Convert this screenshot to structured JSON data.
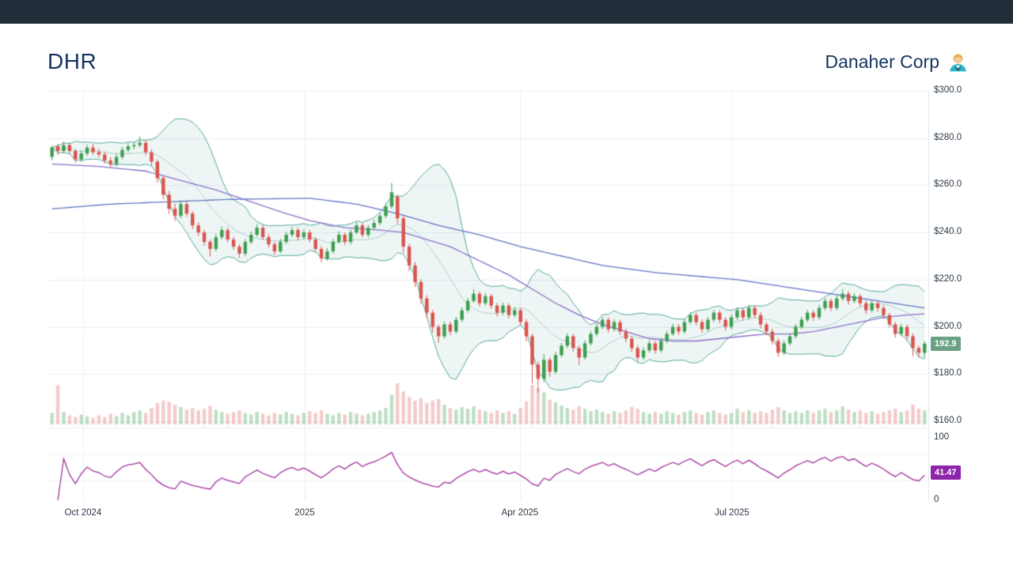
{
  "header": {
    "symbol": "DHR",
    "company": "Danaher Corp"
  },
  "chart_data": {
    "type": "candlestick",
    "title": "DHR Danaher Corp daily candlestick chart with Bollinger bands, moving averages, volume and RSI",
    "panels": [
      "price",
      "volume",
      "rsi"
    ],
    "x_ticks": [
      {
        "label": "Oct 2024",
        "pos": 0.0387
      },
      {
        "label": "2025",
        "pos": 0.291
      },
      {
        "label": "Apr 2025",
        "pos": 0.536
      },
      {
        "label": "Jul 2025",
        "pos": 0.7775
      }
    ],
    "price_axis": {
      "min": 160,
      "max": 300,
      "ticks": [
        {
          "label": "$300.0",
          "value": 300
        },
        {
          "label": "$280.0",
          "value": 280
        },
        {
          "label": "$260.0",
          "value": 260
        },
        {
          "label": "$240.0",
          "value": 240
        },
        {
          "label": "$220.0",
          "value": 220
        },
        {
          "label": "$200.0",
          "value": 200
        },
        {
          "label": "$180.0",
          "value": 180
        },
        {
          "label": "$160.0",
          "value": 160
        }
      ]
    },
    "rsi_axis": {
      "min": 0,
      "max": 100,
      "ticks": [
        {
          "label": "100",
          "value": 100,
          "dy": 5
        },
        {
          "label": "0",
          "value": 0,
          "dy": 0
        }
      ]
    },
    "last_price": "192.9",
    "rsi": {
      "period": 10,
      "last_value": "41.47"
    },
    "bollinger": {
      "window": 12,
      "mult": 2
    },
    "ma200_anchors": [
      [
        0,
        250
      ],
      [
        10,
        252
      ],
      [
        20,
        253
      ],
      [
        30,
        254
      ],
      [
        44,
        254.5
      ],
      [
        52,
        252
      ],
      [
        59,
        248
      ],
      [
        66,
        243
      ],
      [
        73,
        239
      ],
      [
        80,
        234
      ],
      [
        87,
        230
      ],
      [
        94,
        226
      ],
      [
        103,
        223
      ],
      [
        110,
        221.5
      ],
      [
        117,
        220
      ],
      [
        125,
        217
      ],
      [
        133,
        214
      ],
      [
        141,
        211
      ],
      [
        149,
        208
      ]
    ],
    "ma50_anchors": [
      [
        0,
        269
      ],
      [
        8,
        268
      ],
      [
        16,
        266
      ],
      [
        22,
        262
      ],
      [
        28,
        258
      ],
      [
        34,
        253
      ],
      [
        40,
        248
      ],
      [
        44,
        245
      ],
      [
        50,
        242
      ],
      [
        56,
        241
      ],
      [
        60,
        240
      ],
      [
        64,
        237
      ],
      [
        68,
        234
      ],
      [
        73,
        228
      ],
      [
        78,
        222
      ],
      [
        82,
        216
      ],
      [
        86,
        210
      ],
      [
        90,
        205
      ],
      [
        94,
        201
      ],
      [
        98,
        198
      ],
      [
        102,
        195
      ],
      [
        106,
        194
      ],
      [
        110,
        194
      ],
      [
        114,
        195
      ],
      [
        118,
        196
      ],
      [
        122,
        197
      ],
      [
        126,
        197
      ],
      [
        130,
        198
      ],
      [
        134,
        200
      ],
      [
        138,
        202
      ],
      [
        142,
        204
      ],
      [
        146,
        205
      ],
      [
        149,
        205.5
      ]
    ],
    "candles": [
      [
        272.0,
        276.8,
        270.5,
        276.0
      ],
      [
        276.5,
        277.6,
        272.8,
        274.5
      ],
      [
        274.5,
        278.6,
        273.6,
        277.0
      ],
      [
        277.0,
        278.2,
        273.2,
        274.5
      ],
      [
        274.5,
        275.6,
        269.6,
        271.0
      ],
      [
        271.0,
        274.8,
        269.9,
        273.5
      ],
      [
        273.5,
        277.2,
        272.4,
        276.0
      ],
      [
        276.0,
        277.4,
        272.8,
        274.0
      ],
      [
        274.0,
        275.6,
        271.7,
        273.0
      ],
      [
        273.0,
        274.2,
        269.2,
        270.5
      ],
      [
        270.5,
        271.9,
        267.6,
        269.0
      ],
      [
        269.0,
        273.3,
        268.0,
        272.0
      ],
      [
        272.0,
        276.3,
        271.0,
        275.0
      ],
      [
        275.0,
        277.9,
        273.8,
        276.5
      ],
      [
        276.5,
        278.4,
        275.2,
        277.0
      ],
      [
        277.0,
        280.6,
        275.9,
        278.0
      ],
      [
        278.0,
        279.2,
        272.6,
        274.0
      ],
      [
        274.0,
        275.2,
        268.4,
        270.0
      ],
      [
        270.0,
        271.0,
        261.2,
        263.0
      ],
      [
        263.0,
        264.2,
        254.0,
        256.0
      ],
      [
        256.0,
        257.6,
        247.8,
        250.0
      ],
      [
        250.0,
        252.2,
        244.9,
        247.0
      ],
      [
        247.0,
        253.6,
        246.0,
        252.0
      ],
      [
        252.0,
        253.2,
        246.6,
        248.0
      ],
      [
        248.0,
        249.0,
        241.4,
        243.0
      ],
      [
        243.0,
        244.4,
        238.5,
        240.0
      ],
      [
        240.0,
        241.2,
        234.3,
        236.0
      ],
      [
        236.0,
        237.0,
        229.8,
        233.0
      ],
      [
        233.0,
        239.4,
        232.0,
        238.0
      ],
      [
        238.0,
        242.6,
        237.0,
        241.0
      ],
      [
        241.0,
        242.2,
        235.8,
        237.0
      ],
      [
        237.0,
        238.2,
        232.6,
        234.0
      ],
      [
        234.0,
        235.0,
        229.2,
        231.0
      ],
      [
        231.0,
        237.2,
        230.0,
        236.0
      ],
      [
        236.0,
        240.4,
        235.0,
        239.0
      ],
      [
        239.0,
        243.5,
        238.2,
        242.0
      ],
      [
        242.0,
        243.0,
        236.8,
        238.0
      ],
      [
        238.0,
        239.2,
        233.6,
        235.0
      ],
      [
        235.0,
        236.0,
        230.4,
        232.0
      ],
      [
        232.0,
        237.3,
        231.2,
        236.0
      ],
      [
        236.0,
        240.2,
        235.0,
        239.0
      ],
      [
        239.0,
        242.4,
        238.0,
        241.0
      ],
      [
        241.0,
        242.0,
        236.7,
        238.0
      ],
      [
        238.0,
        241.3,
        237.0,
        240.0
      ],
      [
        240.0,
        241.2,
        235.8,
        237.0
      ],
      [
        237.0,
        238.0,
        231.7,
        233.0
      ],
      [
        233.0,
        234.2,
        227.4,
        229.0
      ],
      [
        229.0,
        233.3,
        228.0,
        232.0
      ],
      [
        232.0,
        237.2,
        231.0,
        236.0
      ],
      [
        236.0,
        240.4,
        235.2,
        239.0
      ],
      [
        239.0,
        240.0,
        234.6,
        236.0
      ],
      [
        236.0,
        241.2,
        235.0,
        240.0
      ],
      [
        240.0,
        244.3,
        239.2,
        243.0
      ],
      [
        243.0,
        244.0,
        237.8,
        239.0
      ],
      [
        239.0,
        243.2,
        238.0,
        242.0
      ],
      [
        242.0,
        245.4,
        241.0,
        244.0
      ],
      [
        244.0,
        248.2,
        243.0,
        247.0
      ],
      [
        247.0,
        252.3,
        246.0,
        251.0
      ],
      [
        251.0,
        261.0,
        250.0,
        257.0
      ],
      [
        255.0,
        256.2,
        243.5,
        246.0
      ],
      [
        246.0,
        247.0,
        231.5,
        234.0
      ],
      [
        234.0,
        235.2,
        223.6,
        226.0
      ],
      [
        226.0,
        227.4,
        216.8,
        219.0
      ],
      [
        219.0,
        220.2,
        209.6,
        212.0
      ],
      [
        212.0,
        213.4,
        203.8,
        206.0
      ],
      [
        206.0,
        207.2,
        197.6,
        200.0
      ],
      [
        200.0,
        201.0,
        193.2,
        196.0
      ],
      [
        196.0,
        202.3,
        195.0,
        201.0
      ],
      [
        201.0,
        202.2,
        196.4,
        198.0
      ],
      [
        198.0,
        204.2,
        197.0,
        203.0
      ],
      [
        203.0,
        208.3,
        202.0,
        207.0
      ],
      [
        207.0,
        212.2,
        206.0,
        211.0
      ],
      [
        211.0,
        216.0,
        210.2,
        214.0
      ],
      [
        214.0,
        215.0,
        208.6,
        210.0
      ],
      [
        210.0,
        214.3,
        209.0,
        213.0
      ],
      [
        213.0,
        214.0,
        207.6,
        209.0
      ],
      [
        209.0,
        210.2,
        204.4,
        206.0
      ],
      [
        206.0,
        210.3,
        205.0,
        209.0
      ],
      [
        209.0,
        210.0,
        203.6,
        205.0
      ],
      [
        205.0,
        208.4,
        204.0,
        207.0
      ],
      [
        207.0,
        208.0,
        200.5,
        202.0
      ],
      [
        202.0,
        203.2,
        193.8,
        196.0
      ],
      [
        196.0,
        197.0,
        176.0,
        184.0
      ],
      [
        184.0,
        185.4,
        172.0,
        178.0
      ],
      [
        178.0,
        188.5,
        176.5,
        186.0
      ],
      [
        186.0,
        187.2,
        178.8,
        181.0
      ],
      [
        181.0,
        189.4,
        180.0,
        188.0
      ],
      [
        188.0,
        193.2,
        187.0,
        192.0
      ],
      [
        192.0,
        197.3,
        191.0,
        196.0
      ],
      [
        196.0,
        197.0,
        189.4,
        191.0
      ],
      [
        191.0,
        192.2,
        183.8,
        187.0
      ],
      [
        187.0,
        194.3,
        186.0,
        193.0
      ],
      [
        193.0,
        198.2,
        192.0,
        197.0
      ],
      [
        197.0,
        201.3,
        196.0,
        200.0
      ],
      [
        200.0,
        204.2,
        199.0,
        203.0
      ],
      [
        203.0,
        204.0,
        197.6,
        199.0
      ],
      [
        199.0,
        203.3,
        198.0,
        202.0
      ],
      [
        202.0,
        203.0,
        196.6,
        198.0
      ],
      [
        198.0,
        199.2,
        193.4,
        195.0
      ],
      [
        195.0,
        196.0,
        189.3,
        191.0
      ],
      [
        191.0,
        192.2,
        185.2,
        187.0
      ],
      [
        187.0,
        191.3,
        186.0,
        190.0
      ],
      [
        190.0,
        194.2,
        189.0,
        193.0
      ],
      [
        193.0,
        194.0,
        188.6,
        190.0
      ],
      [
        190.0,
        195.3,
        189.0,
        194.0
      ],
      [
        194.0,
        198.2,
        193.0,
        197.0
      ],
      [
        197.0,
        201.3,
        196.2,
        200.0
      ],
      [
        200.0,
        201.2,
        196.6,
        198.0
      ],
      [
        198.0,
        203.3,
        197.0,
        202.0
      ],
      [
        202.0,
        206.2,
        201.0,
        205.0
      ],
      [
        205.0,
        206.0,
        200.6,
        202.0
      ],
      [
        202.0,
        203.2,
        197.4,
        199.0
      ],
      [
        199.0,
        204.3,
        198.0,
        203.0
      ],
      [
        203.0,
        207.2,
        202.0,
        206.0
      ],
      [
        206.0,
        207.0,
        201.6,
        203.0
      ],
      [
        203.0,
        204.2,
        198.4,
        200.0
      ],
      [
        200.0,
        205.3,
        199.0,
        204.0
      ],
      [
        204.0,
        208.2,
        203.0,
        207.0
      ],
      [
        207.0,
        208.0,
        202.6,
        204.0
      ],
      [
        204.0,
        209.3,
        203.0,
        208.0
      ],
      [
        208.0,
        209.0,
        203.6,
        205.0
      ],
      [
        205.0,
        206.2,
        199.4,
        201.0
      ],
      [
        201.0,
        202.0,
        196.6,
        198.0
      ],
      [
        198.0,
        199.2,
        192.4,
        194.0
      ],
      [
        194.0,
        195.0,
        187.3,
        189.0
      ],
      [
        189.0,
        194.2,
        188.0,
        193.0
      ],
      [
        193.0,
        197.3,
        192.0,
        196.0
      ],
      [
        196.0,
        201.2,
        195.0,
        200.0
      ],
      [
        200.0,
        204.3,
        199.0,
        203.0
      ],
      [
        203.0,
        207.2,
        202.0,
        206.0
      ],
      [
        206.0,
        207.0,
        202.4,
        204.0
      ],
      [
        204.0,
        209.3,
        203.0,
        208.0
      ],
      [
        208.0,
        212.2,
        207.0,
        211.0
      ],
      [
        211.0,
        212.0,
        206.6,
        208.0
      ],
      [
        208.0,
        213.3,
        207.0,
        212.0
      ],
      [
        212.0,
        216.0,
        211.0,
        214.0
      ],
      [
        214.0,
        215.2,
        209.4,
        211.0
      ],
      [
        211.0,
        214.3,
        210.0,
        213.0
      ],
      [
        213.0,
        214.0,
        208.6,
        210.0
      ],
      [
        210.0,
        211.2,
        205.4,
        207.0
      ],
      [
        207.0,
        211.3,
        206.0,
        210.0
      ],
      [
        210.0,
        211.0,
        206.4,
        208.0
      ],
      [
        208.0,
        209.2,
        203.4,
        205.0
      ],
      [
        205.0,
        206.0,
        199.6,
        201.0
      ],
      [
        201.0,
        202.2,
        195.4,
        197.0
      ],
      [
        197.0,
        201.3,
        196.0,
        200.0
      ],
      [
        200.0,
        201.0,
        194.4,
        196.0
      ],
      [
        196.0,
        197.2,
        187.5,
        191.0
      ],
      [
        191.0,
        192.0,
        187.0,
        189.0
      ],
      [
        189.0,
        194.0,
        186.8,
        192.9
      ]
    ],
    "volume": [
      28,
      95,
      30,
      22,
      18,
      24,
      20,
      16,
      22,
      18,
      26,
      20,
      28,
      22,
      30,
      34,
      28,
      40,
      52,
      58,
      55,
      48,
      42,
      36,
      40,
      34,
      38,
      45,
      36,
      30,
      26,
      30,
      34,
      28,
      24,
      30,
      26,
      22,
      28,
      24,
      30,
      26,
      22,
      28,
      32,
      28,
      34,
      26,
      22,
      28,
      24,
      30,
      26,
      22,
      26,
      30,
      34,
      40,
      72,
      100,
      80,
      66,
      58,
      64,
      52,
      58,
      62,
      48,
      40,
      36,
      42,
      38,
      44,
      36,
      32,
      28,
      34,
      28,
      32,
      26,
      40,
      56,
      96,
      88,
      78,
      60,
      54,
      46,
      40,
      36,
      44,
      38,
      32,
      36,
      30,
      26,
      32,
      28,
      34,
      42,
      38,
      30,
      26,
      30,
      26,
      32,
      28,
      24,
      30,
      34,
      28,
      24,
      30,
      34,
      28,
      24,
      28,
      38,
      30,
      34,
      28,
      32,
      28,
      36,
      42,
      34,
      28,
      32,
      28,
      34,
      28,
      34,
      38,
      30,
      34,
      44,
      36,
      30,
      34,
      28,
      32,
      26,
      30,
      34,
      38,
      30,
      34,
      48,
      38,
      34
    ],
    "colors": {
      "up": "#3f9e4f",
      "down": "#d9544e",
      "vol_up": "rgba(110,184,122,0.45)",
      "vol_down": "rgba(231,140,140,0.45)",
      "band_line": "#55a79a",
      "band_fill": "rgba(85,167,154,0.10)",
      "band_mid": "rgba(120,175,165,0.55)",
      "ma50": "#8a6fc8",
      "ma200": "#6273c4",
      "rsi_line": "#a0309c",
      "price_badge": "#6aa183",
      "rsi_badge": "#8e24aa",
      "grid": "#e8eef5",
      "axis_line": "#d8e5ef",
      "axis_text": "#2c3a49",
      "title": "#16335f",
      "topbar": "#232d3a"
    }
  }
}
